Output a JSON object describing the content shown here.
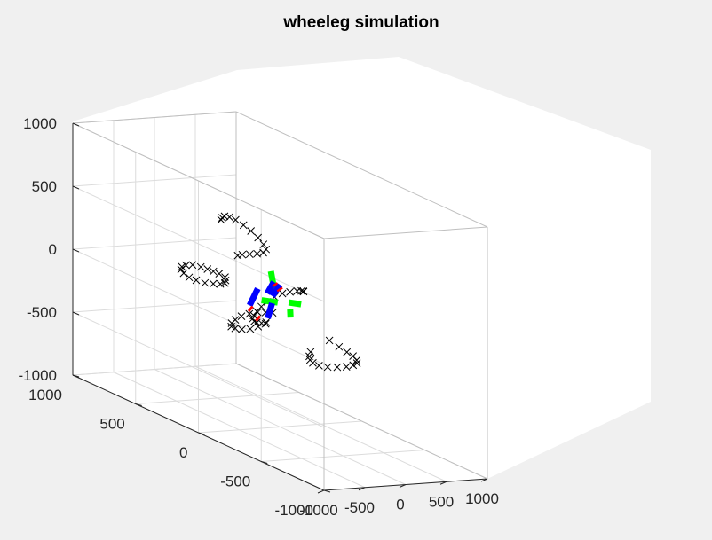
{
  "chart_data": {
    "type": "scatter",
    "title": "wheeleg simulation",
    "xlim": [
      -1000,
      1000
    ],
    "ylim": [
      -1000,
      1000
    ],
    "zlim": [
      -1000,
      1000
    ],
    "x_ticks": [
      "-1000",
      "-500",
      "0",
      "500",
      "1000"
    ],
    "y_ticks": [
      "-1000",
      "-500",
      "0",
      "500",
      "1000"
    ],
    "z_ticks": [
      "-1000",
      "-500",
      "0",
      "500",
      "1000"
    ],
    "grid": true,
    "view": "default 3-D view (azimuth -37.5, elevation 30)",
    "colors": {
      "markers": "#000000",
      "red_segments": "#ff0000",
      "blue_segments": "#0000ff",
      "green_segments": "#00ff00",
      "grid": "#dcdcdc",
      "axes_face": "#ffffff",
      "figure_bg": "#f0f0f0"
    },
    "series": [
      {
        "marker": "x",
        "color": "#000000",
        "note": "trajectory traces (approximate positions in data units)",
        "points": [
          [
            -120,
            360,
            30
          ],
          [
            -160,
            330,
            20
          ],
          [
            -200,
            310,
            10
          ],
          [
            -240,
            320,
            0
          ],
          [
            -280,
            350,
            -10
          ],
          [
            -320,
            390,
            -20
          ],
          [
            -350,
            440,
            -20
          ],
          [
            -360,
            490,
            -20
          ],
          [
            -350,
            540,
            -10
          ],
          [
            -320,
            580,
            0
          ],
          [
            -280,
            600,
            10
          ],
          [
            -230,
            600,
            20
          ],
          [
            -180,
            580,
            30
          ],
          [
            -140,
            540,
            30
          ],
          [
            -120,
            500,
            30
          ],
          [
            -110,
            460,
            30
          ],
          [
            -100,
            420,
            30
          ],
          [
            0,
            470,
            430
          ],
          [
            60,
            500,
            430
          ],
          [
            120,
            520,
            430
          ],
          [
            180,
            520,
            420
          ],
          [
            240,
            510,
            400
          ],
          [
            290,
            480,
            370
          ],
          [
            320,
            440,
            340
          ],
          [
            330,
            390,
            310
          ],
          [
            320,
            340,
            280
          ],
          [
            290,
            300,
            260
          ],
          [
            240,
            290,
            240
          ],
          [
            180,
            300,
            230
          ],
          [
            120,
            320,
            220
          ],
          [
            60,
            340,
            210
          ],
          [
            20,
            350,
            200
          ],
          [
            330,
            30,
            50
          ],
          [
            380,
            60,
            30
          ],
          [
            430,
            110,
            10
          ],
          [
            470,
            170,
            -20
          ],
          [
            490,
            240,
            -60
          ],
          [
            490,
            300,
            -100
          ],
          [
            470,
            350,
            -150
          ],
          [
            430,
            380,
            -200
          ],
          [
            370,
            390,
            -240
          ],
          [
            300,
            380,
            -270
          ],
          [
            230,
            360,
            -290
          ],
          [
            170,
            330,
            -300
          ],
          [
            130,
            290,
            -300
          ],
          [
            100,
            250,
            -290
          ],
          [
            80,
            200,
            -270
          ],
          [
            60,
            150,
            -240
          ],
          [
            20,
            -380,
            -140
          ],
          [
            60,
            -430,
            -170
          ],
          [
            110,
            -460,
            -200
          ],
          [
            170,
            -470,
            -230
          ],
          [
            230,
            -460,
            -270
          ],
          [
            280,
            -430,
            -310
          ],
          [
            310,
            -380,
            -350
          ],
          [
            320,
            -320,
            -390
          ],
          [
            300,
            -260,
            -420
          ],
          [
            260,
            -210,
            -440
          ],
          [
            200,
            -180,
            -440
          ],
          [
            140,
            -170,
            -420
          ],
          [
            90,
            -180,
            -390
          ],
          [
            50,
            -200,
            -350
          ],
          [
            20,
            -230,
            -300
          ],
          [
            -300,
            -80,
            -130
          ],
          [
            -330,
            -40,
            -170
          ],
          [
            -350,
            10,
            -210
          ],
          [
            -360,
            70,
            -240
          ],
          [
            -350,
            130,
            -260
          ],
          [
            -320,
            180,
            -270
          ],
          [
            -270,
            210,
            -260
          ],
          [
            -210,
            220,
            -240
          ],
          [
            -150,
            210,
            -210
          ],
          [
            -100,
            180,
            -180
          ],
          [
            -60,
            140,
            -150
          ],
          [
            -40,
            90,
            -130
          ],
          [
            -30,
            40,
            -110
          ]
        ]
      }
    ],
    "segments": [
      {
        "color": "#00ff00",
        "from": [
          -380,
          -100,
          70
        ],
        "to": [
          -60,
          -20,
          0
        ]
      },
      {
        "color": "#00ff00",
        "from": [
          -20,
          30,
          60
        ],
        "to": [
          10,
          80,
          200
        ]
      },
      {
        "color": "#00ff00",
        "from": [
          60,
          -30,
          0
        ],
        "to": [
          380,
          80,
          -80
        ]
      },
      {
        "color": "#00ff00",
        "from": [
          0,
          -80,
          -30
        ],
        "to": [
          20,
          -70,
          -100
        ]
      },
      {
        "color": "#0000ff",
        "from": [
          -250,
          80,
          -60
        ],
        "to": [
          50,
          210,
          0
        ]
      },
      {
        "color": "#0000ff",
        "from": [
          -120,
          20,
          -140
        ],
        "to": [
          40,
          90,
          -60
        ]
      },
      {
        "color": "#0000ff",
        "from": [
          -50,
          70,
          30
        ],
        "to": [
          200,
          180,
          60
        ]
      },
      {
        "color": "#0000ff",
        "from": [
          60,
          100,
          -10
        ],
        "to": [
          260,
          170,
          40
        ]
      },
      {
        "color": "#ff0000",
        "from": [
          -250,
          80,
          -80
        ],
        "to": [
          -210,
          90,
          -100
        ]
      },
      {
        "color": "#ff0000",
        "from": [
          -190,
          60,
          -150
        ],
        "to": [
          -150,
          70,
          -170
        ]
      },
      {
        "color": "#ff0000",
        "from": [
          190,
          170,
          50
        ],
        "to": [
          220,
          180,
          30
        ]
      },
      {
        "color": "#ff0000",
        "from": [
          220,
          150,
          20
        ],
        "to": [
          250,
          160,
          0
        ]
      }
    ]
  }
}
